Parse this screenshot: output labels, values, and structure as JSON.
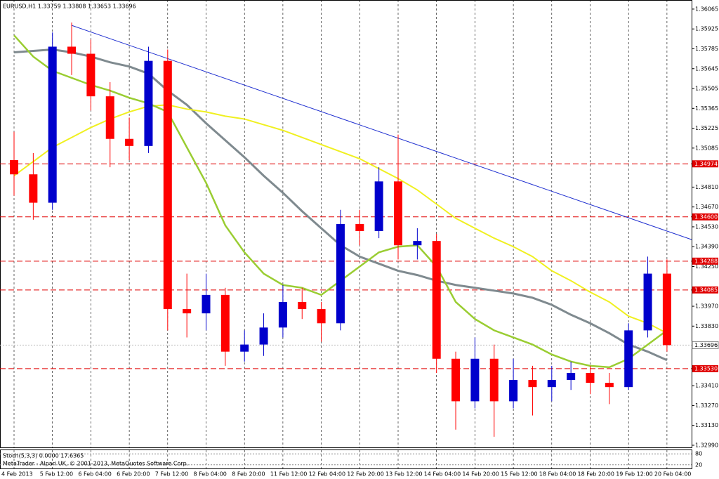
{
  "chart_data": {
    "type": "candlestick",
    "title": "EURUSD,H1  1.33759 1.33808 1.33653 1.33696",
    "categories": [
      "4 Feb 2013",
      null,
      "5 Feb 12:00",
      null,
      "6 Feb 04:00",
      null,
      "6 Feb 20:00",
      null,
      "7 Feb 12:00",
      null,
      "8 Feb 04:00",
      null,
      "8 Feb 20:00",
      null,
      "11 Feb 12:00",
      null,
      "12 Feb 04:00",
      null,
      "12 Feb 20:00",
      null,
      "13 Feb 12:00",
      null,
      "14 Feb 04:00",
      null,
      "14 Feb 20:00",
      null,
      "15 Feb 12:00",
      null,
      "18 Feb 04:00",
      null,
      "18 Feb 20:00",
      null,
      "19 Feb 12:00",
      null,
      "20 Feb 04:00"
    ],
    "open": [
      1.35,
      1.349,
      1.347,
      1.358,
      1.3575,
      1.3545,
      1.3515,
      1.351,
      1.357,
      1.3395,
      1.3392,
      1.3405,
      1.3365,
      1.337,
      1.3382,
      1.34,
      1.3395,
      1.3385,
      1.3455,
      1.345,
      1.3485,
      1.344,
      1.3443,
      1.336,
      1.333,
      1.336,
      1.333,
      1.3345,
      1.334,
      1.3345,
      1.335,
      1.3343,
      1.334,
      1.338,
      1.342
    ],
    "high": [
      1.352,
      1.3505,
      1.359,
      1.3597,
      1.3585,
      1.3555,
      1.353,
      1.358,
      1.3578,
      1.342,
      1.342,
      1.341,
      1.338,
      1.3392,
      1.3412,
      1.341,
      1.34,
      1.3465,
      1.3465,
      1.3495,
      1.3518,
      1.3452,
      1.3448,
      1.3365,
      1.3375,
      1.337,
      1.336,
      1.3355,
      1.3355,
      1.3358,
      1.3355,
      1.335,
      1.3385,
      1.3432,
      1.343
    ],
    "low": [
      1.3475,
      1.3458,
      1.3465,
      1.356,
      1.3535,
      1.3495,
      1.35,
      1.3505,
      1.338,
      1.3375,
      1.338,
      1.3355,
      1.3358,
      1.3362,
      1.3375,
      1.3388,
      1.3372,
      1.338,
      1.344,
      1.3445,
      1.343,
      1.343,
      1.335,
      1.331,
      1.3325,
      1.3305,
      1.3325,
      1.332,
      1.333,
      1.3338,
      1.3335,
      1.3328,
      1.3338,
      1.3375,
      1.3365
    ],
    "close": [
      1.349,
      1.347,
      1.358,
      1.3575,
      1.3545,
      1.3515,
      1.351,
      1.357,
      1.3395,
      1.3392,
      1.3405,
      1.3365,
      1.337,
      1.3382,
      1.34,
      1.3395,
      1.3385,
      1.3455,
      1.345,
      1.3485,
      1.344,
      1.3443,
      1.336,
      1.333,
      1.336,
      1.333,
      1.3345,
      1.334,
      1.3345,
      1.335,
      1.3343,
      1.334,
      1.338,
      1.342,
      1.33696
    ],
    "up_color": "#0000cc",
    "down_color": "#ff0000",
    "lines": [
      {
        "color": "#7f8a8f",
        "width": 3,
        "values": [
          1.3576,
          1.3577,
          1.3578,
          1.3576,
          1.3573,
          1.3569,
          1.3566,
          1.3561,
          1.3549,
          1.3539,
          1.3526,
          1.3514,
          1.3502,
          1.3489,
          1.3477,
          1.3464,
          1.3452,
          1.344,
          1.3432,
          1.3427,
          1.3422,
          1.3419,
          1.3415,
          1.3412,
          1.341,
          1.3408,
          1.3406,
          1.3403,
          1.3398,
          1.3391,
          1.3385,
          1.3378,
          1.337,
          1.3365,
          1.3359
        ]
      },
      {
        "color": "#f0f020",
        "width": 2,
        "values": [
          1.3489,
          1.3499,
          1.3509,
          1.3516,
          1.3523,
          1.3529,
          1.3534,
          1.3538,
          1.3539,
          1.3536,
          1.3534,
          1.3531,
          1.3529,
          1.3525,
          1.3521,
          1.3516,
          1.3511,
          1.3506,
          1.3501,
          1.3494,
          1.3487,
          1.3479,
          1.3469,
          1.3459,
          1.3452,
          1.3445,
          1.3439,
          1.3432,
          1.3422,
          1.3415,
          1.3407,
          1.34,
          1.339,
          1.3385,
          1.3378
        ]
      },
      {
        "color": "#9acd32",
        "width": 2.5,
        "values": [
          1.3588,
          1.3573,
          1.3563,
          1.3558,
          1.3553,
          1.3549,
          1.3544,
          1.354,
          1.3534,
          1.3509,
          1.3484,
          1.3454,
          1.3435,
          1.342,
          1.3412,
          1.341,
          1.3405,
          1.3415,
          1.3425,
          1.3435,
          1.3439,
          1.344,
          1.3425,
          1.34,
          1.3388,
          1.338,
          1.3375,
          1.337,
          1.3363,
          1.3358,
          1.3355,
          1.3354,
          1.336,
          1.337,
          1.338
        ]
      }
    ],
    "trendline": {
      "color": "#2030d0",
      "values": [
        1.3595,
        1.3444
      ]
    },
    "ylim": [
      1.32975,
      1.36129
    ],
    "yticks": [
      1.36065,
      1.35925,
      1.35785,
      1.35645,
      1.35505,
      1.35365,
      1.35225,
      1.35085,
      {
        "value": 1.3481,
        "label": "1.34810"
      },
      {
        "value": 1.3467,
        "label": "1.34670"
      },
      {
        "value": 1.3453,
        "label": "1.34530"
      },
      {
        "value": 1.3439,
        "label": "1.34390"
      },
      {
        "value": 1.3425,
        "label": "1.34250"
      },
      {
        "value": 1.3397,
        "label": "1.33970"
      },
      {
        "value": 1.3383,
        "label": "1.33830"
      },
      {
        "value": 1.3341,
        "label": "1.33410"
      },
      {
        "value": 1.3327,
        "label": "1.33270"
      },
      {
        "value": 1.3313,
        "label": "1.33130"
      },
      {
        "value": 1.3299,
        "label": "1.32990"
      }
    ],
    "levels": [
      1.34974,
      {
        "value": 1.346,
        "label": "1.34600"
      },
      1.34288,
      1.34085,
      {
        "value": 1.3353,
        "label": "1.33530"
      }
    ],
    "level_color": "#e00000",
    "current": 1.33696,
    "indicator": {
      "title": "Stoch(5,3,3) 0.0000 17.6365",
      "ylim": [
        0,
        100
      ],
      "yticks": [
        80,
        20
      ]
    },
    "footer": "MetaTrader - Alpari UK, © 2001-2013, MetaQuotes Software Corp."
  }
}
